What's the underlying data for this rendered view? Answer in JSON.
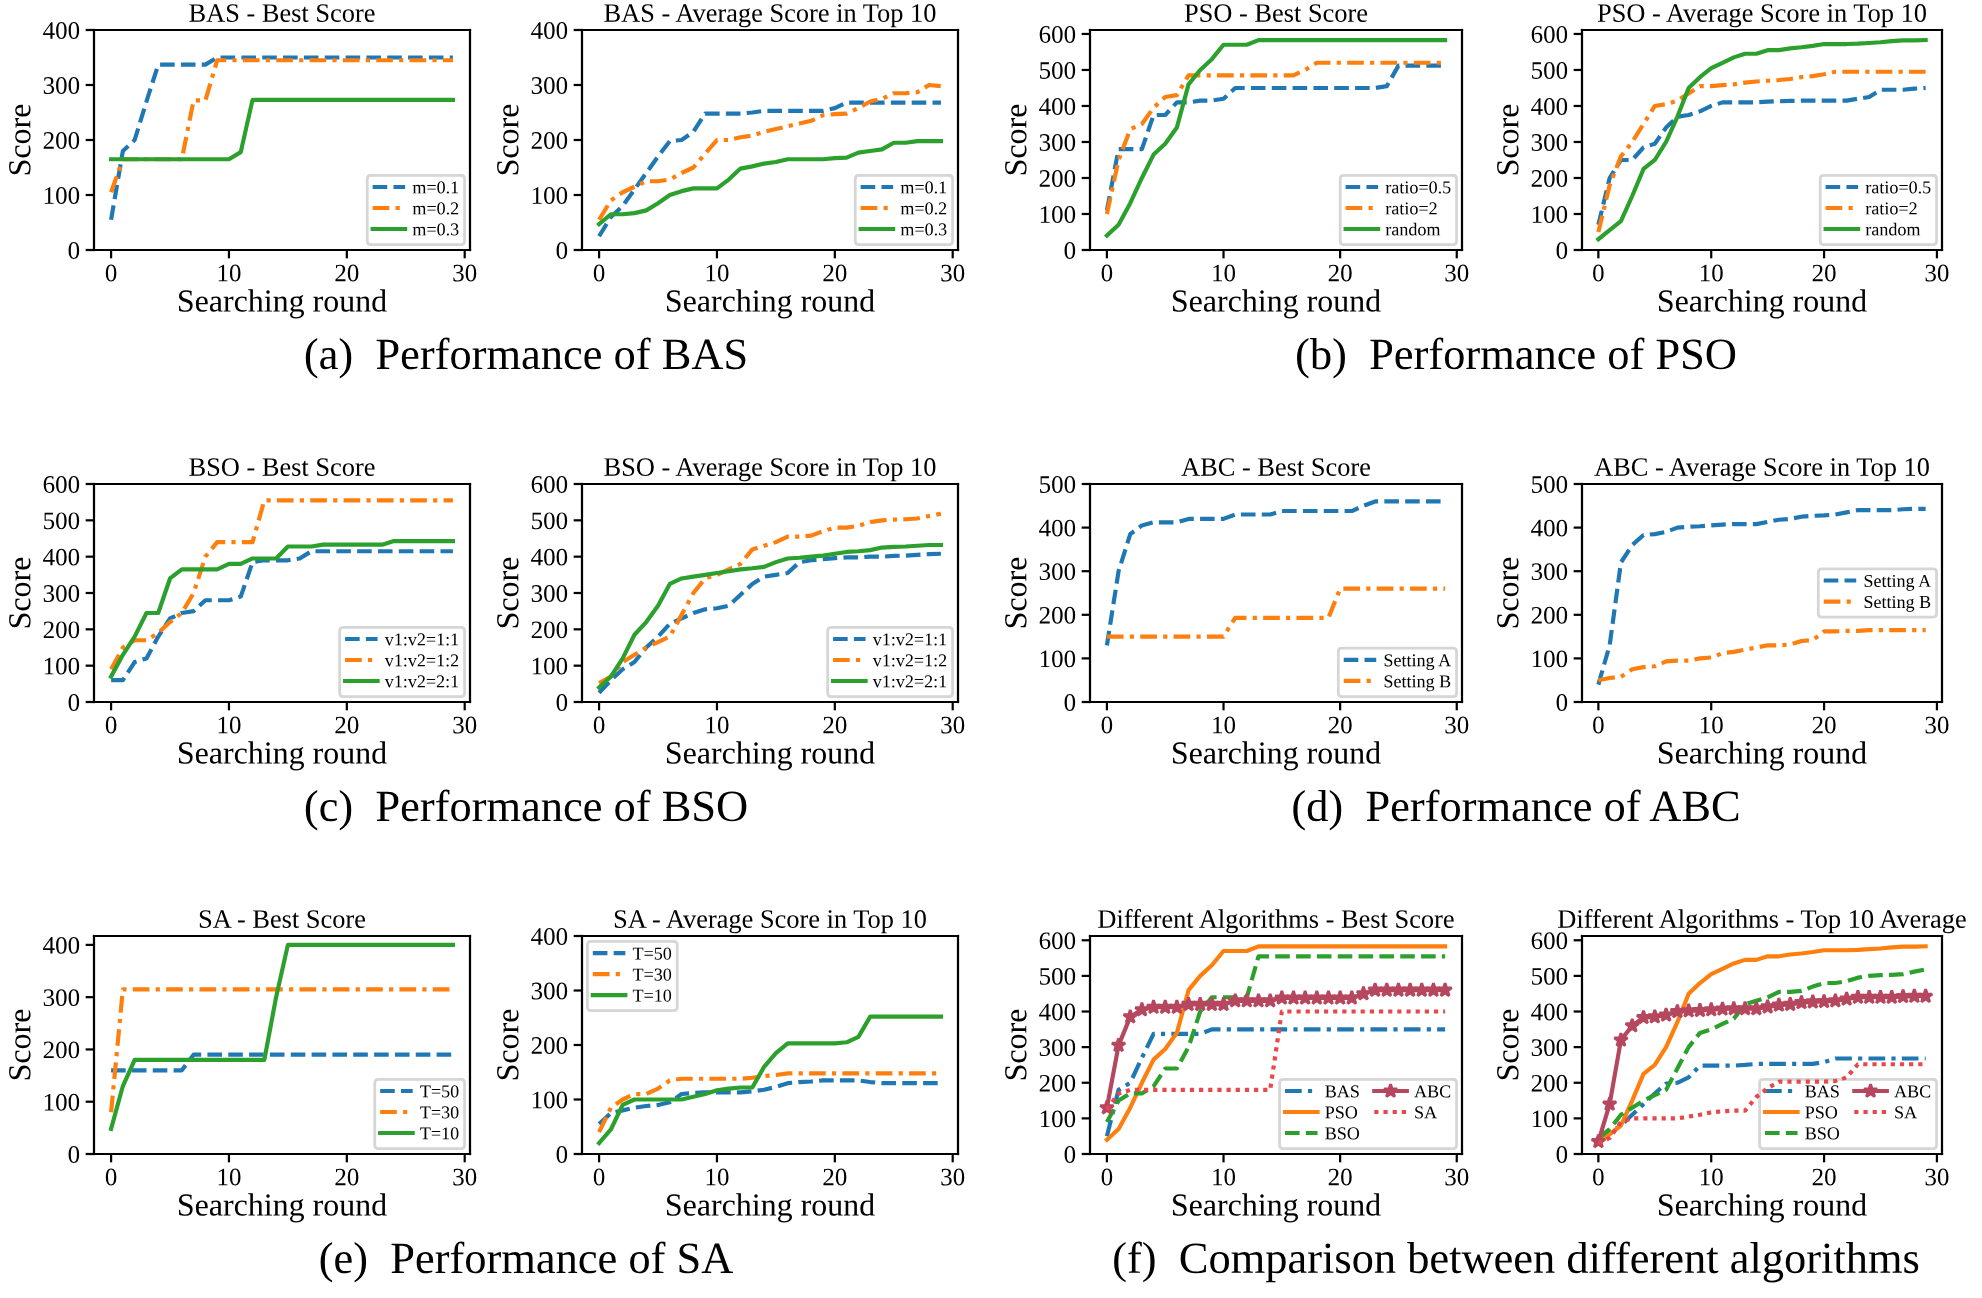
{
  "chart_data": [
    {
      "type": "line",
      "title": "BAS - Best Score",
      "xlabel": "Searching round",
      "ylabel": "Score",
      "xlim": [
        -1.45,
        30.45
      ],
      "ylim": [
        0,
        400
      ],
      "xticks": [
        0,
        10,
        20,
        30
      ],
      "yticks": [
        0,
        100,
        200,
        300,
        400
      ],
      "legend": "bottom right",
      "annotations": [
        "(a)  Performance of BAS"
      ],
      "x": [
        0,
        1,
        2,
        3,
        4,
        5,
        6,
        7,
        8,
        9,
        10,
        11,
        12,
        13,
        14,
        15,
        16,
        17,
        18,
        19,
        20,
        21,
        22,
        23,
        24,
        25,
        26,
        27,
        28,
        29
      ],
      "series": [
        {
          "name": "m=0.1",
          "color": "#1f77b4",
          "line_style": "dashed",
          "values": [
            55,
            180,
            200,
            270,
            337,
            337,
            337,
            337,
            337,
            350,
            350,
            350,
            350,
            350,
            350,
            350,
            350,
            350,
            350,
            350,
            350,
            350,
            350,
            350,
            350,
            350,
            350,
            350,
            350,
            350
          ]
        },
        {
          "name": "m=0.2",
          "color": "#ff7f0e",
          "line_style": "dashdot",
          "values": [
            105,
            165,
            165,
            165,
            165,
            165,
            165,
            272,
            272,
            345,
            345,
            345,
            345,
            345,
            345,
            345,
            345,
            345,
            345,
            345,
            345,
            345,
            345,
            345,
            345,
            345,
            345,
            345,
            345,
            345
          ]
        },
        {
          "name": "m=0.3",
          "color": "#2ca02c",
          "line_style": "solid",
          "values": [
            165,
            165,
            165,
            165,
            165,
            165,
            165,
            165,
            165,
            165,
            165,
            178,
            273,
            273,
            273,
            273,
            273,
            273,
            273,
            273,
            273,
            273,
            273,
            273,
            273,
            273,
            273,
            273,
            273,
            273
          ]
        }
      ]
    },
    {
      "type": "line",
      "title": "BAS - Average Score in Top 10",
      "xlabel": "Searching round",
      "ylabel": "Score",
      "xlim": [
        -1.45,
        30.45
      ],
      "ylim": [
        0,
        400
      ],
      "xticks": [
        0,
        10,
        20,
        30
      ],
      "yticks": [
        0,
        100,
        200,
        300,
        400
      ],
      "legend": "bottom right",
      "x": [
        0,
        1,
        2,
        3,
        4,
        5,
        6,
        7,
        8,
        9,
        10,
        11,
        12,
        13,
        14,
        15,
        16,
        17,
        18,
        19,
        20,
        21,
        22,
        23,
        24,
        25,
        26,
        27,
        28,
        29
      ],
      "series": [
        {
          "name": "m=0.1",
          "color": "#1f77b4",
          "line_style": "dashed",
          "values": [
            25,
            60,
            80,
            110,
            140,
            170,
            198,
            200,
            215,
            248,
            248,
            248,
            248,
            250,
            253,
            253,
            253,
            253,
            253,
            253,
            258,
            268,
            268,
            268,
            268,
            268,
            268,
            268,
            268,
            268
          ]
        },
        {
          "name": "m=0.2",
          "color": "#ff7f0e",
          "line_style": "dashdot",
          "values": [
            55,
            90,
            105,
            115,
            125,
            125,
            128,
            140,
            150,
            175,
            200,
            200,
            205,
            208,
            215,
            220,
            225,
            230,
            235,
            245,
            247,
            248,
            258,
            270,
            275,
            285,
            285,
            287,
            300,
            298
          ]
        },
        {
          "name": "m=0.3",
          "color": "#2ca02c",
          "line_style": "solid",
          "values": [
            47,
            65,
            65,
            67,
            72,
            85,
            100,
            107,
            112,
            112,
            112,
            128,
            148,
            152,
            157,
            160,
            165,
            165,
            165,
            165,
            167,
            168,
            177,
            180,
            183,
            195,
            195,
            198,
            198,
            198
          ]
        }
      ]
    },
    {
      "type": "line",
      "title": "PSO - Best Score",
      "xlabel": "Searching round",
      "ylabel": "Score",
      "xlim": [
        -1.45,
        30.45
      ],
      "ylim": [
        0,
        611
      ],
      "xticks": [
        0,
        10,
        20,
        30
      ],
      "yticks": [
        0,
        100,
        200,
        300,
        400,
        500,
        600
      ],
      "legend": "bottom right",
      "annotations": [
        "(b)  Performance of PSO"
      ],
      "x": [
        0,
        1,
        2,
        3,
        4,
        5,
        6,
        7,
        8,
        9,
        10,
        11,
        12,
        13,
        14,
        15,
        16,
        17,
        18,
        19,
        20,
        21,
        22,
        23,
        24,
        25,
        26,
        27,
        28,
        29
      ],
      "series": [
        {
          "name": "ratio=0.5",
          "color": "#1f77b4",
          "line_style": "dashed",
          "values": [
            110,
            280,
            280,
            280,
            375,
            375,
            410,
            410,
            415,
            415,
            420,
            450,
            450,
            450,
            450,
            450,
            450,
            450,
            450,
            450,
            450,
            450,
            450,
            450,
            455,
            512,
            512,
            512,
            512,
            512
          ]
        },
        {
          "name": "ratio=2",
          "color": "#ff7f0e",
          "line_style": "dashdot",
          "values": [
            100,
            250,
            335,
            350,
            395,
            425,
            430,
            485,
            485,
            485,
            485,
            485,
            485,
            485,
            485,
            485,
            485,
            500,
            520,
            520,
            520,
            520,
            520,
            520,
            520,
            520,
            520,
            520,
            520,
            520
          ]
        },
        {
          "name": "random",
          "color": "#2ca02c",
          "line_style": "solid",
          "values": [
            40,
            70,
            130,
            200,
            265,
            295,
            340,
            460,
            500,
            530,
            570,
            570,
            570,
            583,
            583,
            583,
            583,
            583,
            583,
            583,
            583,
            583,
            583,
            583,
            583,
            583,
            583,
            583,
            583,
            583
          ]
        }
      ]
    },
    {
      "type": "line",
      "title": "PSO - Average Score in Top 10",
      "xlabel": "Searching round",
      "ylabel": "Score",
      "xlim": [
        -1.45,
        30.45
      ],
      "ylim": [
        0,
        611
      ],
      "xticks": [
        0,
        10,
        20,
        30
      ],
      "yticks": [
        0,
        100,
        200,
        300,
        400,
        500,
        600
      ],
      "legend": "bottom right",
      "x": [
        0,
        1,
        2,
        3,
        4,
        5,
        6,
        7,
        8,
        9,
        10,
        11,
        12,
        13,
        14,
        15,
        16,
        17,
        18,
        19,
        20,
        21,
        22,
        23,
        24,
        25,
        26,
        27,
        28,
        29
      ],
      "series": [
        {
          "name": "ratio=0.5",
          "color": "#1f77b4",
          "line_style": "dashed",
          "values": [
            70,
            200,
            250,
            250,
            285,
            295,
            340,
            370,
            375,
            385,
            400,
            410,
            410,
            410,
            410,
            412,
            413,
            414,
            415,
            415,
            415,
            415,
            415,
            420,
            425,
            445,
            445,
            445,
            448,
            450
          ]
        },
        {
          "name": "ratio=2",
          "color": "#ff7f0e",
          "line_style": "dashdot",
          "values": [
            50,
            180,
            260,
            300,
            350,
            400,
            405,
            415,
            435,
            455,
            455,
            458,
            460,
            465,
            468,
            470,
            472,
            475,
            480,
            483,
            488,
            495,
            495,
            495,
            495,
            495,
            495,
            495,
            495,
            495
          ]
        },
        {
          "name": "random",
          "color": "#2ca02c",
          "line_style": "solid",
          "values": [
            30,
            55,
            80,
            150,
            225,
            250,
            300,
            370,
            450,
            480,
            505,
            520,
            535,
            545,
            545,
            555,
            555,
            560,
            563,
            567,
            572,
            572,
            572,
            573,
            575,
            577,
            580,
            582,
            582,
            583
          ]
        }
      ]
    },
    {
      "type": "line",
      "title": "BSO - Best Score",
      "xlabel": "Searching round",
      "ylabel": "Score",
      "xlim": [
        -1.45,
        30.45
      ],
      "ylim": [
        0,
        600
      ],
      "xticks": [
        0,
        10,
        20,
        30
      ],
      "yticks": [
        0,
        100,
        200,
        300,
        400,
        500,
        600
      ],
      "legend": "bottom right",
      "annotations": [
        "(c)  Performance of BSO"
      ],
      "x": [
        0,
        1,
        2,
        3,
        4,
        5,
        6,
        7,
        8,
        9,
        10,
        11,
        12,
        13,
        14,
        15,
        16,
        17,
        18,
        19,
        20,
        21,
        22,
        23,
        24,
        25,
        26,
        27,
        28,
        29
      ],
      "series": [
        {
          "name": "v1:v2=1:1",
          "color": "#1f77b4",
          "line_style": "dashed",
          "values": [
            60,
            60,
            110,
            120,
            180,
            230,
            245,
            250,
            280,
            280,
            280,
            290,
            385,
            390,
            390,
            390,
            395,
            415,
            415,
            415,
            415,
            415,
            415,
            415,
            415,
            415,
            415,
            415,
            415,
            415
          ]
        },
        {
          "name": "v1:v2=1:2",
          "color": "#ff7f0e",
          "line_style": "dashdot",
          "values": [
            90,
            150,
            170,
            170,
            190,
            220,
            245,
            300,
            400,
            440,
            440,
            440,
            440,
            555,
            555,
            555,
            555,
            555,
            555,
            555,
            555,
            555,
            555,
            555,
            555,
            555,
            555,
            555,
            555,
            555
          ]
        },
        {
          "name": "v1:v2=2:1",
          "color": "#2ca02c",
          "line_style": "solid",
          "values": [
            70,
            130,
            180,
            245,
            245,
            340,
            365,
            365,
            365,
            365,
            380,
            380,
            395,
            395,
            395,
            428,
            428,
            428,
            433,
            433,
            433,
            433,
            433,
            433,
            443,
            443,
            443,
            443,
            443,
            443
          ]
        }
      ]
    },
    {
      "type": "line",
      "title": "BSO - Average Score in Top 10",
      "xlabel": "Searching round",
      "ylabel": "Score",
      "xlim": [
        -1.45,
        30.45
      ],
      "ylim": [
        0,
        600
      ],
      "xticks": [
        0,
        10,
        20,
        30
      ],
      "yticks": [
        0,
        100,
        200,
        300,
        400,
        500,
        600
      ],
      "legend": "bottom right",
      "x": [
        0,
        1,
        2,
        3,
        4,
        5,
        6,
        7,
        8,
        9,
        10,
        11,
        12,
        13,
        14,
        15,
        16,
        17,
        18,
        19,
        20,
        21,
        22,
        23,
        24,
        25,
        26,
        27,
        28,
        29
      ],
      "series": [
        {
          "name": "v1:v2=1:1",
          "color": "#1f77b4",
          "line_style": "dashed",
          "values": [
            25,
            60,
            90,
            110,
            150,
            180,
            215,
            230,
            245,
            255,
            258,
            265,
            295,
            325,
            345,
            350,
            355,
            385,
            390,
            393,
            396,
            398,
            398,
            400,
            400,
            402,
            403,
            405,
            407,
            408
          ]
        },
        {
          "name": "v1:v2=1:2",
          "color": "#ff7f0e",
          "line_style": "dashdot",
          "values": [
            52,
            70,
            110,
            130,
            150,
            165,
            180,
            240,
            300,
            340,
            350,
            365,
            380,
            420,
            430,
            440,
            455,
            455,
            458,
            470,
            480,
            480,
            485,
            495,
            500,
            502,
            503,
            505,
            512,
            518
          ]
        },
        {
          "name": "v1:v2=2:1",
          "color": "#2ca02c",
          "line_style": "solid",
          "values": [
            40,
            70,
            120,
            185,
            220,
            265,
            325,
            340,
            345,
            350,
            355,
            360,
            365,
            368,
            372,
            385,
            395,
            397,
            400,
            403,
            408,
            413,
            415,
            418,
            425,
            427,
            428,
            430,
            432,
            432
          ]
        }
      ]
    },
    {
      "type": "line",
      "title": "ABC - Best Score",
      "xlabel": "Searching round",
      "ylabel": "Score",
      "xlim": [
        -1.45,
        30.45
      ],
      "ylim": [
        0,
        500
      ],
      "xticks": [
        0,
        10,
        20,
        30
      ],
      "yticks": [
        0,
        100,
        200,
        300,
        400,
        500
      ],
      "legend": "bottom right",
      "annotations": [
        "(d)  Performance of ABC"
      ],
      "x": [
        0,
        1,
        2,
        3,
        4,
        5,
        6,
        7,
        8,
        9,
        10,
        11,
        12,
        13,
        14,
        15,
        16,
        17,
        18,
        19,
        20,
        21,
        22,
        23,
        24,
        25,
        26,
        27,
        28,
        29
      ],
      "series": [
        {
          "name": "Setting A",
          "color": "#1f77b4",
          "line_style": "dashed",
          "values": [
            130,
            300,
            385,
            405,
            412,
            412,
            412,
            420,
            420,
            420,
            420,
            430,
            430,
            430,
            430,
            438,
            438,
            438,
            438,
            438,
            438,
            438,
            450,
            460,
            460,
            460,
            460,
            460,
            460,
            460
          ]
        },
        {
          "name": "Setting B",
          "color": "#ff7f0e",
          "line_style": "dashdot",
          "values": [
            150,
            150,
            150,
            150,
            150,
            150,
            150,
            150,
            150,
            150,
            150,
            193,
            193,
            193,
            193,
            193,
            193,
            193,
            193,
            193,
            260,
            260,
            260,
            260,
            260,
            260,
            260,
            260,
            260,
            260
          ]
        }
      ]
    },
    {
      "type": "line",
      "title": "ABC - Average Score in Top 10",
      "xlabel": "Searching round",
      "ylabel": "Score",
      "xlim": [
        -1.45,
        30.45
      ],
      "ylim": [
        0,
        500
      ],
      "xticks": [
        0,
        10,
        20,
        30
      ],
      "yticks": [
        0,
        100,
        200,
        300,
        400,
        500
      ],
      "legend": "right",
      "x": [
        0,
        1,
        2,
        3,
        4,
        5,
        6,
        7,
        8,
        9,
        10,
        11,
        12,
        13,
        14,
        15,
        16,
        17,
        18,
        19,
        20,
        21,
        22,
        23,
        24,
        25,
        26,
        27,
        28,
        29
      ],
      "series": [
        {
          "name": "Setting A",
          "color": "#1f77b4",
          "line_style": "dashed",
          "values": [
            40,
            130,
            320,
            360,
            383,
            385,
            390,
            400,
            402,
            403,
            405,
            407,
            408,
            408,
            408,
            413,
            418,
            420,
            425,
            427,
            428,
            430,
            435,
            440,
            440,
            440,
            440,
            442,
            443,
            443
          ]
        },
        {
          "name": "Setting B",
          "color": "#ff7f0e",
          "line_style": "dashdot",
          "values": [
            50,
            55,
            58,
            75,
            80,
            82,
            93,
            95,
            95,
            100,
            102,
            112,
            115,
            120,
            125,
            130,
            130,
            132,
            140,
            142,
            162,
            162,
            163,
            163,
            165,
            165,
            165,
            165,
            165,
            165
          ]
        }
      ]
    },
    {
      "type": "line",
      "title": "SA - Best Score",
      "xlabel": "Searching round",
      "ylabel": "Score",
      "xlim": [
        -1.45,
        30.45
      ],
      "ylim": [
        0,
        417
      ],
      "xticks": [
        0,
        10,
        20,
        30
      ],
      "yticks": [
        0,
        100,
        200,
        300,
        400
      ],
      "legend": "bottom right",
      "annotations": [
        "(e)  Performance of SA"
      ],
      "x": [
        0,
        1,
        2,
        3,
        4,
        5,
        6,
        7,
        8,
        9,
        10,
        11,
        12,
        13,
        14,
        15,
        16,
        17,
        18,
        19,
        20,
        21,
        22,
        23,
        24,
        25,
        26,
        27,
        28,
        29
      ],
      "series": [
        {
          "name": "T=50",
          "color": "#1f77b4",
          "line_style": "dashed",
          "values": [
            160,
            160,
            160,
            160,
            160,
            160,
            160,
            190,
            190,
            190,
            190,
            190,
            190,
            190,
            190,
            190,
            190,
            190,
            190,
            190,
            190,
            190,
            190,
            190,
            190,
            190,
            190,
            190,
            190,
            190
          ]
        },
        {
          "name": "T=30",
          "color": "#ff7f0e",
          "line_style": "dashdot",
          "values": [
            80,
            315,
            315,
            315,
            315,
            315,
            315,
            315,
            315,
            315,
            315,
            315,
            315,
            315,
            315,
            315,
            315,
            315,
            315,
            315,
            315,
            315,
            315,
            315,
            315,
            315,
            315,
            315,
            315,
            315
          ]
        },
        {
          "name": "T=10",
          "color": "#2ca02c",
          "line_style": "solid",
          "values": [
            48,
            130,
            180,
            180,
            180,
            180,
            180,
            180,
            180,
            180,
            180,
            180,
            180,
            180,
            300,
            400,
            400,
            400,
            400,
            400,
            400,
            400,
            400,
            400,
            400,
            400,
            400,
            400,
            400,
            400
          ]
        }
      ]
    },
    {
      "type": "line",
      "title": "SA - Average Score in Top 10",
      "xlabel": "Searching round",
      "ylabel": "Score",
      "xlim": [
        -1.45,
        30.45
      ],
      "ylim": [
        0,
        400
      ],
      "xticks": [
        0,
        10,
        20,
        30
      ],
      "yticks": [
        0,
        100,
        200,
        300,
        400
      ],
      "legend": "top left",
      "x": [
        0,
        1,
        2,
        3,
        4,
        5,
        6,
        7,
        8,
        9,
        10,
        11,
        12,
        13,
        14,
        15,
        16,
        17,
        18,
        19,
        20,
        21,
        22,
        23,
        24,
        25,
        26,
        27,
        28,
        29
      ],
      "series": [
        {
          "name": "T=50",
          "color": "#1f77b4",
          "line_style": "dashed",
          "values": [
            55,
            75,
            80,
            85,
            88,
            90,
            95,
            110,
            112,
            113,
            113,
            113,
            113,
            115,
            118,
            123,
            130,
            132,
            133,
            135,
            135,
            135,
            135,
            132,
            130,
            130,
            130,
            130,
            130,
            130
          ]
        },
        {
          "name": "T=30",
          "color": "#ff7f0e",
          "line_style": "dashdot",
          "values": [
            40,
            85,
            100,
            110,
            110,
            120,
            135,
            138,
            138,
            138,
            138,
            138,
            138,
            140,
            143,
            145,
            148,
            148,
            148,
            148,
            148,
            148,
            148,
            148,
            148,
            148,
            148,
            148,
            148,
            148
          ]
        },
        {
          "name": "T=10",
          "color": "#2ca02c",
          "line_style": "solid",
          "values": [
            20,
            45,
            90,
            100,
            100,
            100,
            100,
            100,
            105,
            110,
            117,
            120,
            122,
            122,
            160,
            185,
            203,
            203,
            203,
            203,
            203,
            205,
            215,
            252,
            252,
            252,
            252,
            252,
            252,
            252
          ]
        }
      ]
    },
    {
      "type": "line",
      "title": "Different Algorithms - Best Score",
      "xlabel": "Searching round",
      "ylabel": "Score",
      "xlim": [
        -1.45,
        30.45
      ],
      "ylim": [
        0,
        612
      ],
      "xticks": [
        0,
        10,
        20,
        30
      ],
      "yticks": [
        0,
        100,
        200,
        300,
        400,
        500,
        600
      ],
      "legend": "bottom right",
      "annotations": [
        "(f)  Comparison between different algorithms"
      ],
      "x": [
        0,
        1,
        2,
        3,
        4,
        5,
        6,
        7,
        8,
        9,
        10,
        11,
        12,
        13,
        14,
        15,
        16,
        17,
        18,
        19,
        20,
        21,
        22,
        23,
        24,
        25,
        26,
        27,
        28,
        29
      ],
      "series": [
        {
          "name": "BAS",
          "color": "#1f77b4",
          "line_style": "dashdot",
          "values": [
            50,
            180,
            200,
            270,
            337,
            337,
            337,
            337,
            337,
            350,
            350,
            350,
            350,
            350,
            350,
            350,
            350,
            350,
            350,
            350,
            350,
            350,
            350,
            350,
            350,
            350,
            350,
            350,
            350,
            350
          ]
        },
        {
          "name": "PSO",
          "color": "#ff7f0e",
          "line_style": "solid",
          "values": [
            40,
            70,
            130,
            200,
            265,
            295,
            340,
            460,
            500,
            530,
            570,
            570,
            570,
            583,
            583,
            583,
            583,
            583,
            583,
            583,
            583,
            583,
            583,
            583,
            583,
            583,
            583,
            583,
            583,
            583
          ]
        },
        {
          "name": "BSO",
          "color": "#2ca02c",
          "line_style": "dashed",
          "values": [
            90,
            150,
            170,
            170,
            190,
            240,
            240,
            300,
            400,
            440,
            440,
            440,
            440,
            555,
            555,
            555,
            555,
            555,
            555,
            555,
            555,
            555,
            555,
            555,
            555,
            555,
            555,
            555,
            555,
            555
          ]
        },
        {
          "name": "ABC",
          "color": "#b5475e",
          "line_style": "solid",
          "marker": "star",
          "values": [
            130,
            305,
            385,
            405,
            412,
            412,
            412,
            420,
            420,
            420,
            420,
            430,
            430,
            430,
            430,
            438,
            438,
            438,
            438,
            438,
            438,
            438,
            450,
            460,
            460,
            460,
            460,
            460,
            460,
            460
          ]
        },
        {
          "name": "SA",
          "color": "#e8474b",
          "line_style": "dotted",
          "values": [
            125,
            170,
            180,
            180,
            180,
            180,
            180,
            180,
            180,
            180,
            180,
            180,
            180,
            180,
            180,
            400,
            400,
            400,
            400,
            400,
            400,
            400,
            400,
            400,
            400,
            400,
            400,
            400,
            400,
            400
          ]
        }
      ]
    },
    {
      "type": "line",
      "title": "Different Algorithms - Top 10 Average",
      "xlabel": "Searching round",
      "ylabel": "Score",
      "xlim": [
        -1.45,
        30.45
      ],
      "ylim": [
        0,
        612
      ],
      "xticks": [
        0,
        10,
        20,
        30
      ],
      "yticks": [
        0,
        100,
        200,
        300,
        400,
        500,
        600
      ],
      "legend": "bottom right",
      "x": [
        0,
        1,
        2,
        3,
        4,
        5,
        6,
        7,
        8,
        9,
        10,
        11,
        12,
        13,
        14,
        15,
        16,
        17,
        18,
        19,
        20,
        21,
        22,
        23,
        24,
        25,
        26,
        27,
        28,
        29
      ],
      "series": [
        {
          "name": "BAS",
          "color": "#1f77b4",
          "line_style": "dashdot",
          "values": [
            30,
            60,
            80,
            110,
            140,
            170,
            198,
            200,
            215,
            248,
            248,
            248,
            248,
            250,
            253,
            253,
            253,
            253,
            253,
            253,
            258,
            268,
            268,
            268,
            268,
            268,
            268,
            268,
            268,
            268
          ]
        },
        {
          "name": "PSO",
          "color": "#ff7f0e",
          "line_style": "solid",
          "values": [
            30,
            55,
            80,
            150,
            225,
            250,
            300,
            370,
            450,
            480,
            505,
            520,
            535,
            545,
            545,
            555,
            555,
            560,
            563,
            567,
            572,
            572,
            572,
            573,
            575,
            577,
            580,
            582,
            582,
            583
          ]
        },
        {
          "name": "BSO",
          "color": "#2ca02c",
          "line_style": "dashed",
          "values": [
            45,
            70,
            110,
            130,
            150,
            165,
            180,
            240,
            300,
            340,
            350,
            365,
            380,
            420,
            430,
            440,
            455,
            455,
            458,
            470,
            480,
            480,
            485,
            495,
            500,
            502,
            503,
            505,
            512,
            518
          ]
        },
        {
          "name": "ABC",
          "color": "#b5475e",
          "line_style": "solid",
          "marker": "star",
          "values": [
            35,
            140,
            320,
            360,
            383,
            385,
            390,
            400,
            402,
            403,
            405,
            407,
            408,
            408,
            408,
            413,
            418,
            420,
            425,
            427,
            428,
            430,
            435,
            440,
            440,
            440,
            440,
            442,
            443,
            443
          ]
        },
        {
          "name": "SA",
          "color": "#e8474b",
          "line_style": "dotted",
          "values": [
            30,
            45,
            90,
            100,
            100,
            100,
            100,
            100,
            105,
            110,
            117,
            120,
            122,
            122,
            160,
            185,
            203,
            203,
            203,
            203,
            203,
            205,
            215,
            252,
            252,
            252,
            252,
            252,
            252,
            252
          ]
        }
      ]
    }
  ]
}
